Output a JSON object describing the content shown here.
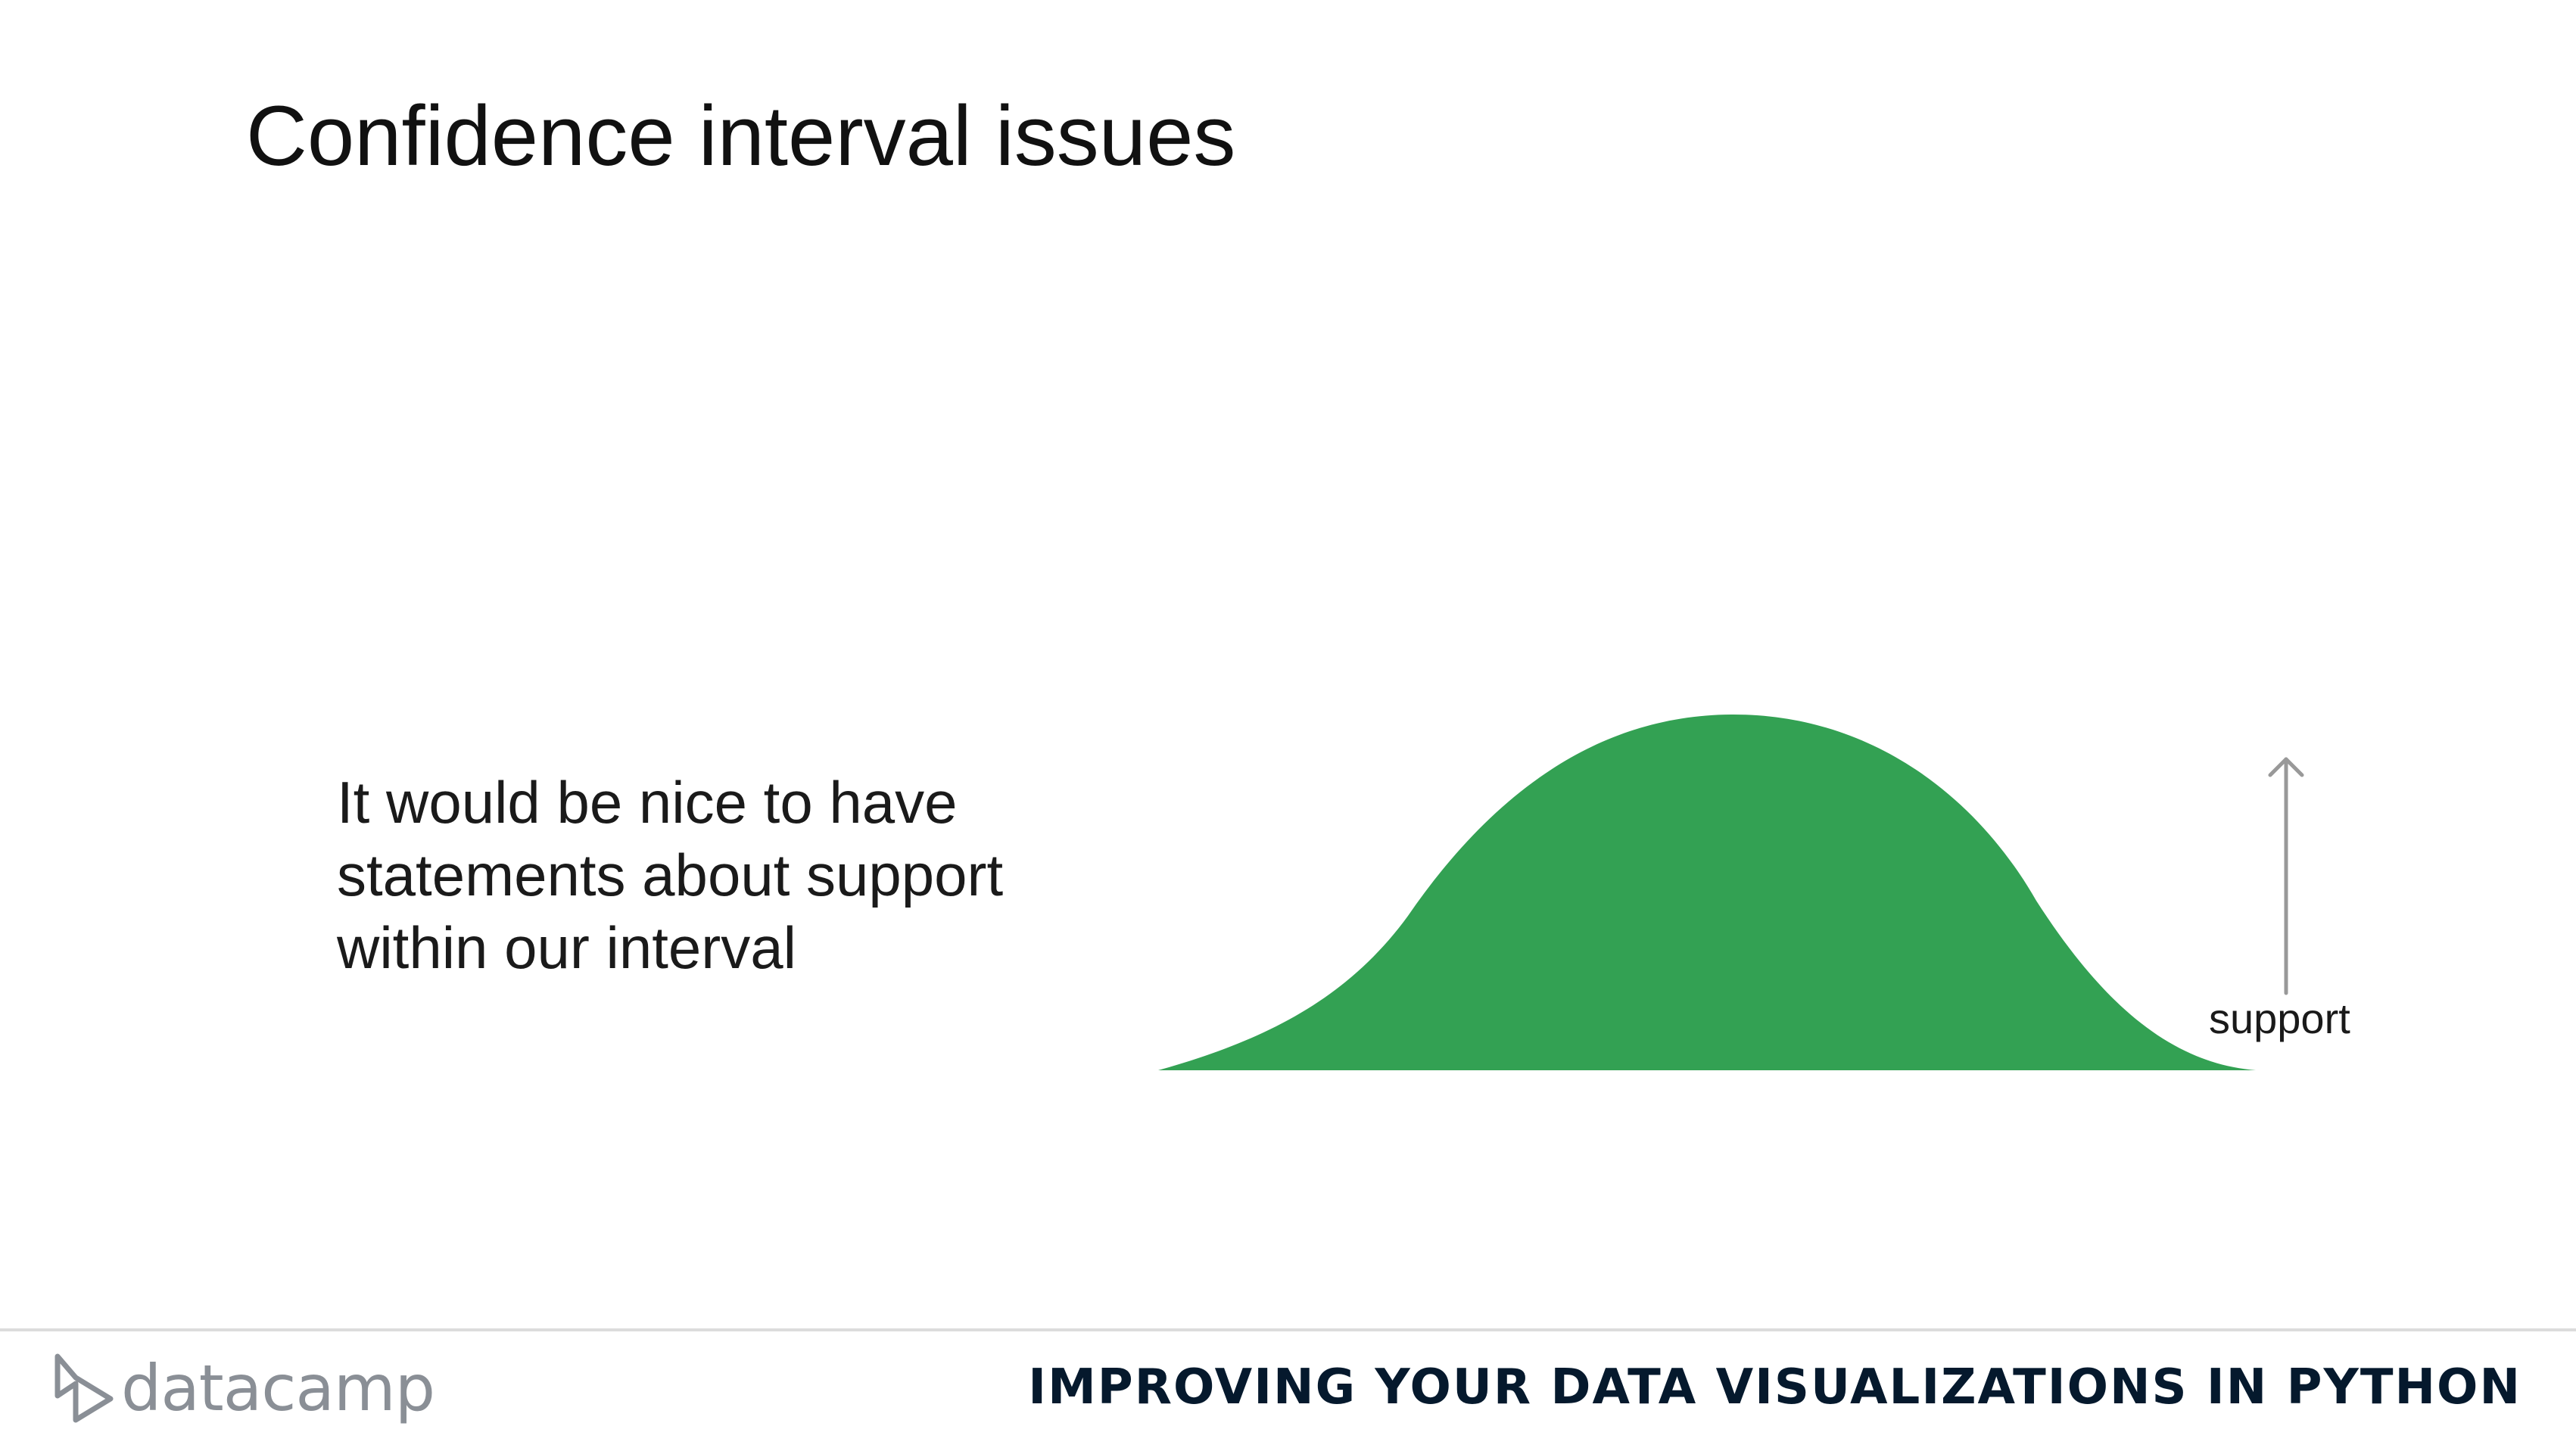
{
  "slide": {
    "title": "Confidence interval issues",
    "body_lines": [
      "It would be nice to have",
      "statements about support",
      "within our interval"
    ]
  },
  "diagram": {
    "fill_color": "#33a153",
    "arrow_color": "#999999",
    "support_label": "support"
  },
  "footer": {
    "logo_text": "datacamp",
    "course_title": "IMPROVING YOUR DATA VISUALIZATIONS IN PYTHON"
  }
}
